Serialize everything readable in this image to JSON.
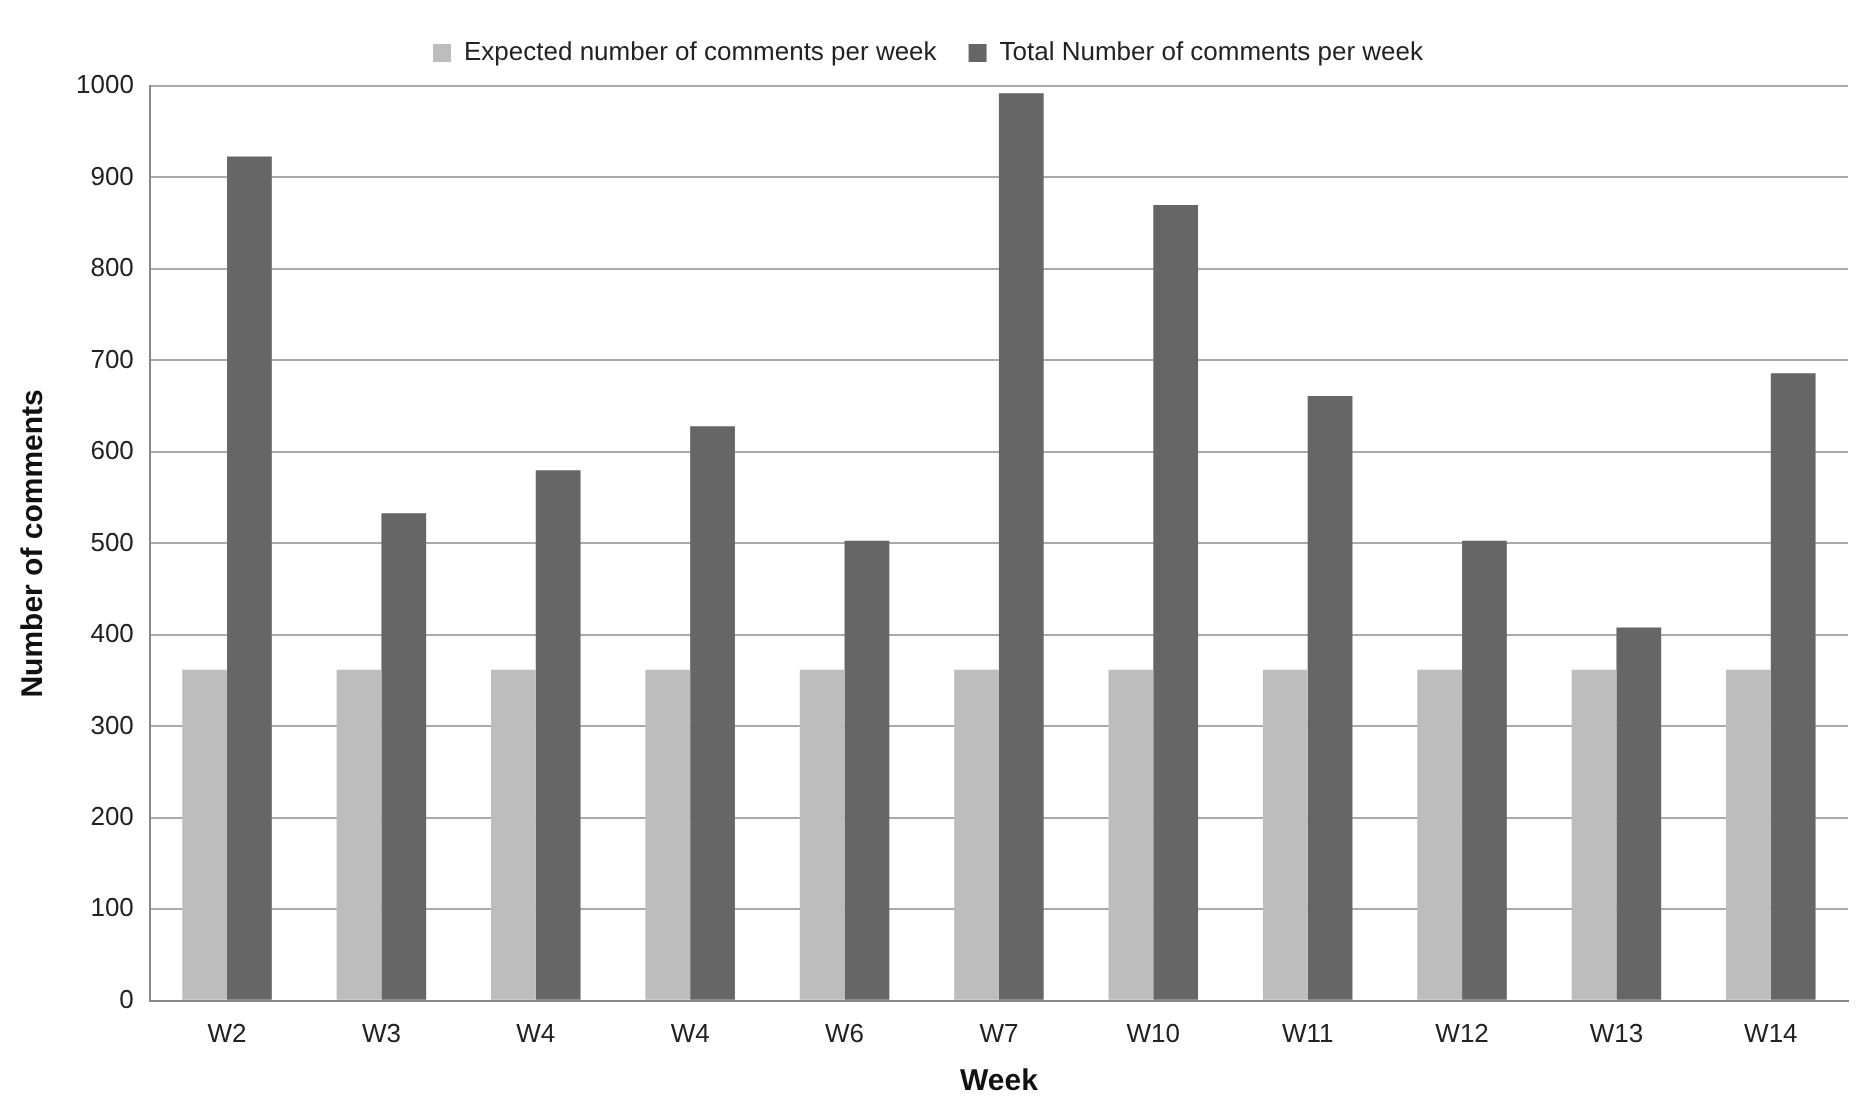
{
  "chart_data": {
    "type": "bar",
    "xlabel": "Week",
    "ylabel": "Number of comments",
    "categories": [
      "W2",
      "W3",
      "W4",
      "W4",
      "W6",
      "W7",
      "W10",
      "W11",
      "W12",
      "W13",
      "W14"
    ],
    "series": [
      {
        "name": "Expected number of comments per week",
        "color": "#bdbdbd",
        "values": [
          362,
          362,
          362,
          362,
          362,
          362,
          362,
          362,
          362,
          362,
          362
        ]
      },
      {
        "name": "Total Number of comments per week",
        "color": "#666666",
        "values": [
          923,
          533,
          580,
          628,
          503,
          992,
          870,
          661,
          503,
          408,
          686
        ]
      }
    ],
    "ylim": [
      0,
      1000
    ],
    "yticks": [
      0,
      100,
      200,
      300,
      400,
      500,
      600,
      700,
      800,
      900,
      1000
    ],
    "grid": "y",
    "legend": "top"
  }
}
